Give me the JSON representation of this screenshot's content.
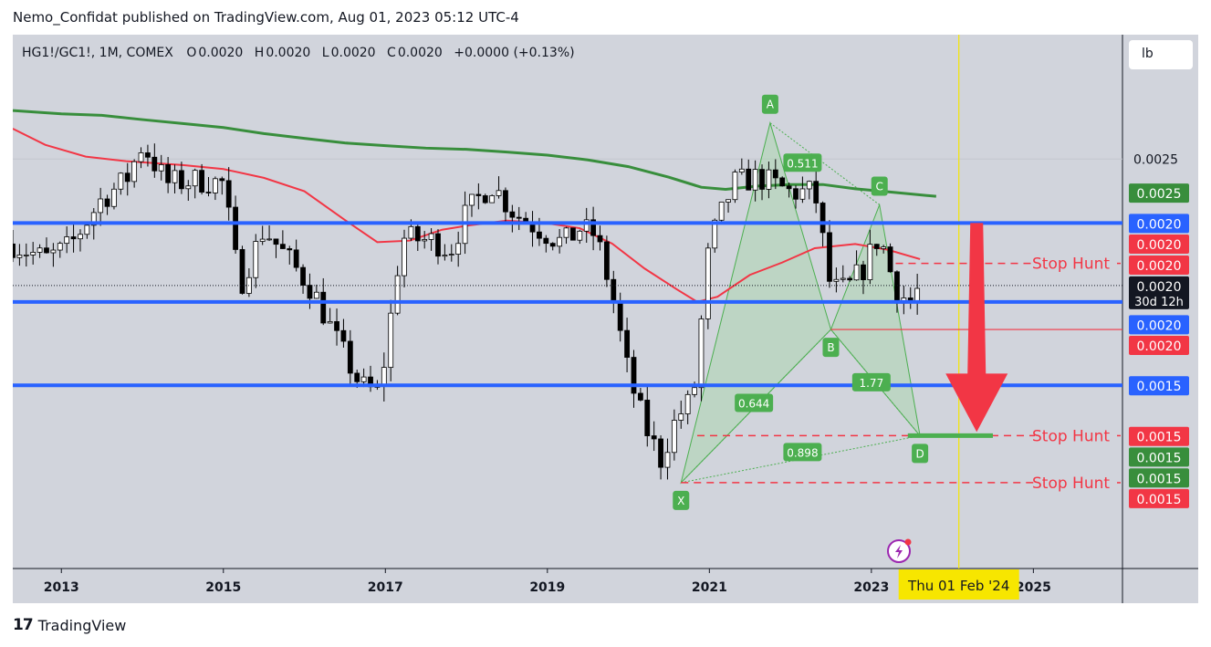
{
  "header": {
    "publisher_line": "Nemo_Confidat published on TradingView.com, Aug 01, 2023 05:12 UTC-4"
  },
  "legend": {
    "symbol": "HG1!/GC1!, 1M, COMEX",
    "open_label": "O",
    "open": "0.0020",
    "high_label": "H",
    "high": "0.0020",
    "low_label": "L",
    "low": "0.0020",
    "close_label": "C",
    "close": "0.0020",
    "change": "+0.0000 (+0.13%)"
  },
  "unit_button": {
    "label": "lb"
  },
  "footer": {
    "brand": "TradingView",
    "logo_glyph": "17"
  },
  "colors": {
    "background": "#d1d4dc",
    "blue_level": "#2962ff",
    "red": "#f23645",
    "green_ma": "#388e3c",
    "red_ma": "#f23645",
    "harmonic_fill": "#a5d6a7",
    "harmonic_line": "#4caf50",
    "yellow_marker": "#f7e600"
  },
  "chart_data": {
    "type": "candlestick",
    "ylim": [
      0.00128,
      0.00304
    ],
    "time_range": [
      2012.4,
      2026.1
    ],
    "x_ticks": [
      "2013",
      "2015",
      "2017",
      "2019",
      "2021",
      "2023",
      "2025"
    ],
    "x_tick_years": [
      2013,
      2015,
      2017,
      2019,
      2021,
      2023,
      2025
    ],
    "y_tick_labels": [
      {
        "label": "0.0025",
        "value": 0.00263
      }
    ],
    "price_labels": [
      {
        "label": "0.0025",
        "value": 0.002519,
        "color": "#388e3c"
      },
      {
        "label": "0.0020",
        "value": 0.002419,
        "color": "#2962ff"
      },
      {
        "label": "0.0020",
        "value": 0.002351,
        "color": "#f23645"
      },
      {
        "label": "0.0020",
        "value": 0.002282,
        "color": "#f23645"
      },
      {
        "label": "0.0020",
        "value": 0.002213,
        "color": "#131722",
        "sub": "30d 12h"
      },
      {
        "label": "0.0020",
        "value": 0.002085,
        "color": "#2962ff"
      },
      {
        "label": "0.0020",
        "value": 0.002017,
        "color": "#f23645"
      },
      {
        "label": "0.0015",
        "value": 0.001884,
        "color": "#2962ff"
      },
      {
        "label": "0.0015",
        "value": 0.001717,
        "color": "#f23645"
      },
      {
        "label": "0.0015",
        "value": 0.001649,
        "color": "#388e3c"
      },
      {
        "label": "0.0015",
        "value": 0.00158,
        "color": "#388e3c"
      },
      {
        "label": "0.0015",
        "value": 0.001512,
        "color": "#f23645"
      }
    ],
    "horizontal_levels": [
      {
        "value": 0.002419,
        "color": "#2962ff",
        "style": "solid"
      },
      {
        "value": 0.002159,
        "color": "#2962ff",
        "style": "solid"
      },
      {
        "value": 0.001884,
        "color": "#2962ff",
        "style": "solid"
      }
    ],
    "stop_hunt_lines": [
      {
        "label": "Stop Hunt",
        "value": 0.002286,
        "from_year": 2023.3
      },
      {
        "label": "Stop Hunt",
        "value": 0.001718,
        "from_year": 2020.85
      },
      {
        "label": "Stop Hunt",
        "value": 0.001563,
        "from_year": 2020.65
      }
    ],
    "red_stop_line": {
      "value": 0.002068,
      "from_year": 2022.5,
      "to_year": 2026.1
    },
    "current_price": 0.002213,
    "green_target": {
      "value": 0.001718,
      "from_year": 2023.45,
      "to_year": 2024.5
    },
    "arrow": {
      "year": 2024.3,
      "from_value": 0.002419,
      "to_value": 0.00173
    },
    "date_marker": {
      "label": "Thu 01 Feb '24",
      "year": 2024.08
    },
    "harmonic": {
      "points": [
        {
          "label": "X",
          "year": 2020.65,
          "value": 0.001563
        },
        {
          "label": "A",
          "year": 2021.75,
          "value": 0.002749
        },
        {
          "label": "B",
          "year": 2022.5,
          "value": 0.002068
        },
        {
          "label": "C",
          "year": 2023.1,
          "value": 0.002479
        },
        {
          "label": "D",
          "year": 2023.6,
          "value": 0.001718
        }
      ],
      "ratios": [
        {
          "label": "0.511",
          "year": 2022.15,
          "value": 0.002618
        },
        {
          "label": "1.77",
          "year": 2023.0,
          "value": 0.001894
        },
        {
          "label": "0.644",
          "year": 2021.55,
          "value": 0.001826
        },
        {
          "label": "0.898",
          "year": 2022.15,
          "value": 0.001664
        }
      ]
    },
    "ma_long": [
      [
        2012.4,
        0.00279
      ],
      [
        2013.0,
        0.002779
      ],
      [
        2013.5,
        0.002774
      ],
      [
        2014.0,
        0.00276
      ],
      [
        2014.5,
        0.002747
      ],
      [
        2015.0,
        0.002734
      ],
      [
        2015.5,
        0.002714
      ],
      [
        2016.0,
        0.002698
      ],
      [
        2016.5,
        0.002683
      ],
      [
        2017.0,
        0.002674
      ],
      [
        2017.5,
        0.002666
      ],
      [
        2018.0,
        0.002662
      ],
      [
        2018.5,
        0.002653
      ],
      [
        2019.0,
        0.002643
      ],
      [
        2019.5,
        0.002627
      ],
      [
        2020.0,
        0.002605
      ],
      [
        2020.5,
        0.00257
      ],
      [
        2020.9,
        0.002537
      ],
      [
        2021.2,
        0.00253
      ],
      [
        2021.6,
        0.002541
      ],
      [
        2022.0,
        0.002546
      ],
      [
        2022.4,
        0.002546
      ],
      [
        2022.8,
        0.002532
      ],
      [
        2023.2,
        0.002522
      ],
      [
        2023.8,
        0.002507
      ]
    ],
    "ma_short": [
      [
        2012.4,
        0.00273
      ],
      [
        2012.8,
        0.002677
      ],
      [
        2013.3,
        0.002638
      ],
      [
        2013.8,
        0.002623
      ],
      [
        2014.5,
        0.00261
      ],
      [
        2015.0,
        0.002597
      ],
      [
        2015.5,
        0.002568
      ],
      [
        2016.0,
        0.002524
      ],
      [
        2016.5,
        0.002429
      ],
      [
        2016.9,
        0.002356
      ],
      [
        2017.3,
        0.002361
      ],
      [
        2017.7,
        0.002397
      ],
      [
        2018.0,
        0.00241
      ],
      [
        2018.5,
        0.002427
      ],
      [
        2019.0,
        0.002418
      ],
      [
        2019.4,
        0.002402
      ],
      [
        2019.8,
        0.002351
      ],
      [
        2020.2,
        0.002269
      ],
      [
        2020.6,
        0.0022
      ],
      [
        2020.85,
        0.002159
      ],
      [
        2021.1,
        0.002176
      ],
      [
        2021.5,
        0.002248
      ],
      [
        2021.9,
        0.002289
      ],
      [
        2022.3,
        0.002336
      ],
      [
        2022.8,
        0.00235
      ],
      [
        2023.2,
        0.002331
      ],
      [
        2023.6,
        0.0023
      ]
    ],
    "price_path": [
      [
        2012.4,
        0.00235
      ],
      [
        2012.8,
        0.0023
      ],
      [
        2013.1,
        0.00234
      ],
      [
        2013.5,
        0.0025
      ],
      [
        2013.8,
        0.00256
      ],
      [
        2014.0,
        0.00268
      ],
      [
        2014.3,
        0.00255
      ],
      [
        2014.7,
        0.00256
      ],
      [
        2015.0,
        0.00255
      ],
      [
        2015.2,
        0.00221
      ],
      [
        2015.5,
        0.0024
      ],
      [
        2015.8,
        0.0023
      ],
      [
        2016.1,
        0.0022
      ],
      [
        2016.4,
        0.00203
      ],
      [
        2016.7,
        0.00188
      ],
      [
        2016.9,
        0.00186
      ],
      [
        2017.0,
        0.00198
      ],
      [
        2017.2,
        0.00237
      ],
      [
        2017.6,
        0.00236
      ],
      [
        2017.8,
        0.00233
      ],
      [
        2018.0,
        0.00245
      ],
      [
        2018.3,
        0.00255
      ],
      [
        2018.6,
        0.00245
      ],
      [
        2018.9,
        0.0024
      ],
      [
        2019.2,
        0.00235
      ],
      [
        2019.4,
        0.0024
      ],
      [
        2019.6,
        0.00238
      ],
      [
        2019.8,
        0.00218
      ],
      [
        2020.0,
        0.00192
      ],
      [
        2020.2,
        0.00175
      ],
      [
        2020.4,
        0.00164
      ],
      [
        2020.6,
        0.00178
      ],
      [
        2020.8,
        0.00184
      ],
      [
        2021.0,
        0.00235
      ],
      [
        2021.3,
        0.00255
      ],
      [
        2021.6,
        0.00257
      ],
      [
        2022.0,
        0.00252
      ],
      [
        2022.3,
        0.00252
      ],
      [
        2022.5,
        0.0022
      ],
      [
        2022.7,
        0.0022
      ],
      [
        2022.9,
        0.00227
      ],
      [
        2023.1,
        0.00238
      ],
      [
        2023.3,
        0.0022
      ],
      [
        2023.5,
        0.00215
      ],
      [
        2023.6,
        0.002215
      ]
    ]
  }
}
